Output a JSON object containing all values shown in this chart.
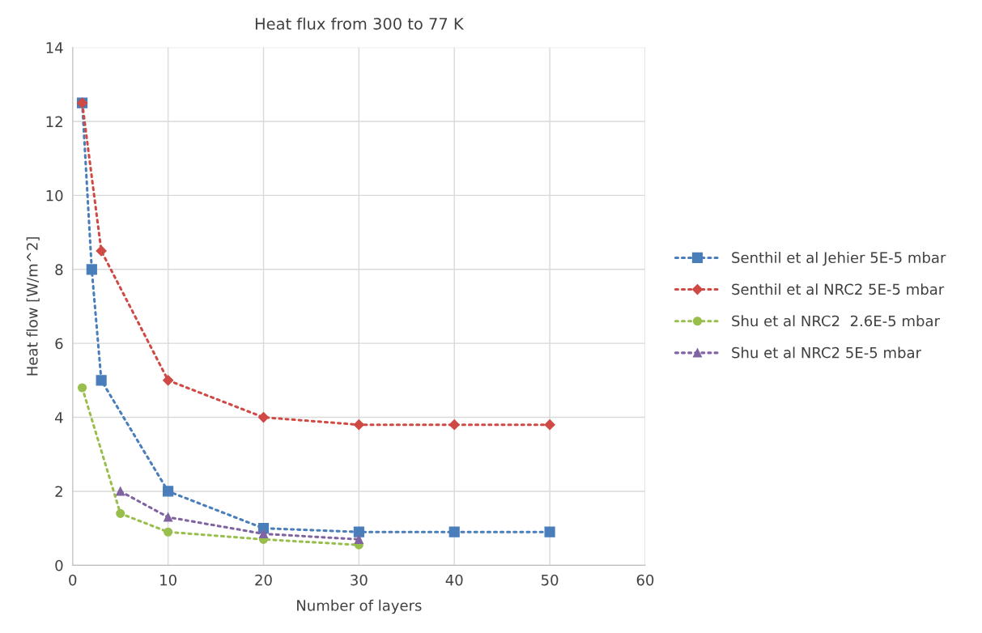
{
  "chart_data": {
    "type": "line",
    "title": "Heat flux from 300 to 77 K",
    "xlabel": "Number of layers",
    "ylabel": "Heat flow [W/m^2]",
    "xlim": [
      0,
      60
    ],
    "xticks": [
      0,
      10,
      20,
      30,
      40,
      50,
      60
    ],
    "ylim": [
      0,
      14
    ],
    "yticks": [
      0,
      2,
      4,
      6,
      8,
      10,
      12,
      14
    ],
    "grid": true,
    "legend": "right",
    "line_style": "dotted",
    "series": [
      {
        "name": "Senthil et al Jehier 5E-5 mbar",
        "color": "#4a7ebb",
        "marker": "square",
        "x": [
          1,
          2,
          3,
          10,
          20,
          30,
          40,
          50
        ],
        "values": [
          12.5,
          8,
          5,
          2,
          1,
          0.9,
          0.9,
          0.9
        ]
      },
      {
        "name": "Senthil et al NRC2 5E-5 mbar",
        "color": "#cf4a45",
        "marker": "diamond",
        "x": [
          1,
          3,
          10,
          20,
          30,
          40,
          50
        ],
        "values": [
          12.5,
          8.5,
          5,
          4,
          3.8,
          3.8,
          3.8
        ]
      },
      {
        "name": "Shu et al NRC2  2.6E-5 mbar",
        "color": "#98bf4d",
        "marker": "circle",
        "x": [
          1,
          5,
          10,
          20,
          30
        ],
        "values": [
          4.8,
          1.4,
          0.9,
          0.7,
          0.55
        ]
      },
      {
        "name": "Shu et al NRC2 5E-5 mbar",
        "color": "#8064a2",
        "marker": "triangle",
        "x": [
          5,
          10,
          20,
          30
        ],
        "values": [
          2,
          1.3,
          0.85,
          0.7
        ]
      }
    ]
  }
}
